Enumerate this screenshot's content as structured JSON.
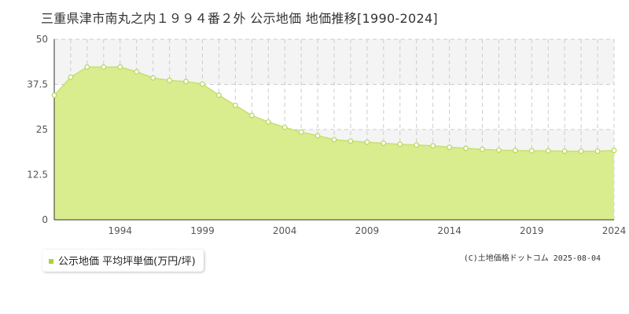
{
  "title": "三重県津市南丸之内１９９４番２外 公示地価 地価推移[1990-2024]",
  "legend": {
    "label": "公示地価 平均坪単価(万円/坪)"
  },
  "copyright": "(C)土地価格ドットコム 2025-08-04",
  "colors": {
    "fill": "#d9ec8e",
    "line": "#c7e070",
    "marker_fill": "#ffffff",
    "marker_stroke": "#b8d65a",
    "grid": "#cccccc",
    "band": "#f4f4f4",
    "legend_swatch": "#a8d23a"
  },
  "chart_data": {
    "type": "area",
    "title": "三重県津市南丸之内１９９４番２外 公示地価 地価推移[1990-2024]",
    "x": [
      1990,
      1991,
      1992,
      1993,
      1994,
      1995,
      1996,
      1997,
      1998,
      1999,
      2000,
      2001,
      2002,
      2003,
      2004,
      2005,
      2006,
      2007,
      2008,
      2009,
      2010,
      2011,
      2012,
      2013,
      2014,
      2015,
      2016,
      2017,
      2018,
      2019,
      2020,
      2021,
      2022,
      2023,
      2024
    ],
    "series": [
      {
        "name": "公示地価 平均坪単価(万円/坪)",
        "values": [
          34.5,
          39.5,
          42.3,
          42.3,
          42.3,
          41.0,
          39.3,
          38.6,
          38.3,
          37.6,
          34.5,
          31.7,
          28.9,
          27.1,
          25.6,
          24.3,
          23.3,
          22.2,
          21.8,
          21.5,
          21.2,
          20.9,
          20.7,
          20.5,
          20.1,
          19.8,
          19.5,
          19.3,
          19.2,
          19.1,
          19.1,
          19.0,
          19.0,
          19.0,
          19.2
        ]
      }
    ],
    "y_ticks": [
      0,
      12.5,
      25,
      37.5,
      50
    ],
    "y_tick_labels": [
      "0",
      "12.5",
      "25",
      "37.5",
      "50"
    ],
    "x_tick_labels": [
      "1994",
      "1999",
      "2004",
      "2009",
      "2014",
      "2019",
      "2024"
    ],
    "x_tick_years": [
      1994,
      1999,
      2004,
      2009,
      2014,
      2019,
      2024
    ],
    "xlim": [
      1990,
      2024
    ],
    "ylim": [
      0,
      50
    ],
    "grid": true,
    "legend_position": "bottom-left"
  }
}
